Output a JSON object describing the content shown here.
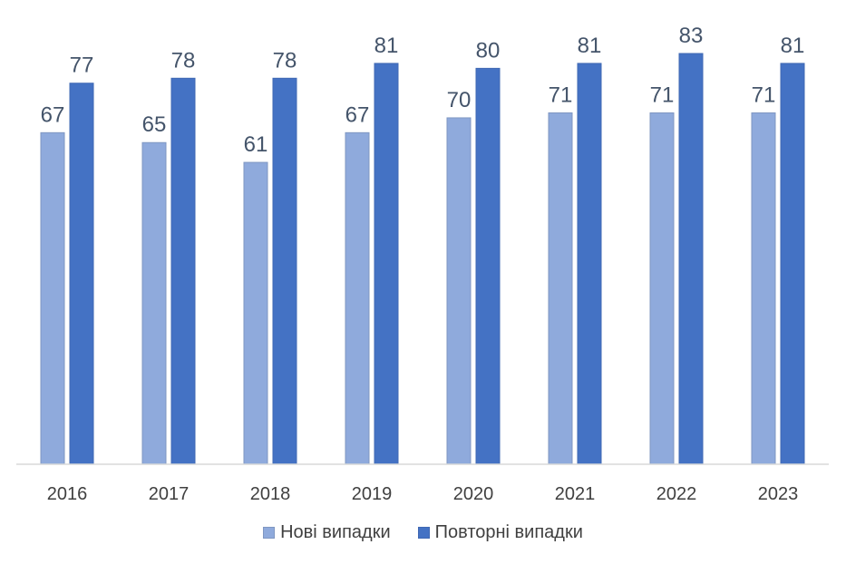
{
  "chart_data": {
    "type": "bar",
    "categories": [
      "2016",
      "2017",
      "2018",
      "2019",
      "2020",
      "2021",
      "2022",
      "2023"
    ],
    "series": [
      {
        "name": "Нові випадки",
        "values": [
          67,
          65,
          61,
          67,
          70,
          71,
          71,
          71
        ],
        "color": "#8faadc",
        "border": "#7f97c2"
      },
      {
        "name": "Повторні випадки",
        "values": [
          77,
          78,
          78,
          81,
          80,
          81,
          83,
          81
        ],
        "color": "#4472c4",
        "border": "#3f68b3"
      }
    ],
    "ylim": [
      0,
      83
    ],
    "grid": false,
    "legend_position": "bottom",
    "data_labels": true
  }
}
